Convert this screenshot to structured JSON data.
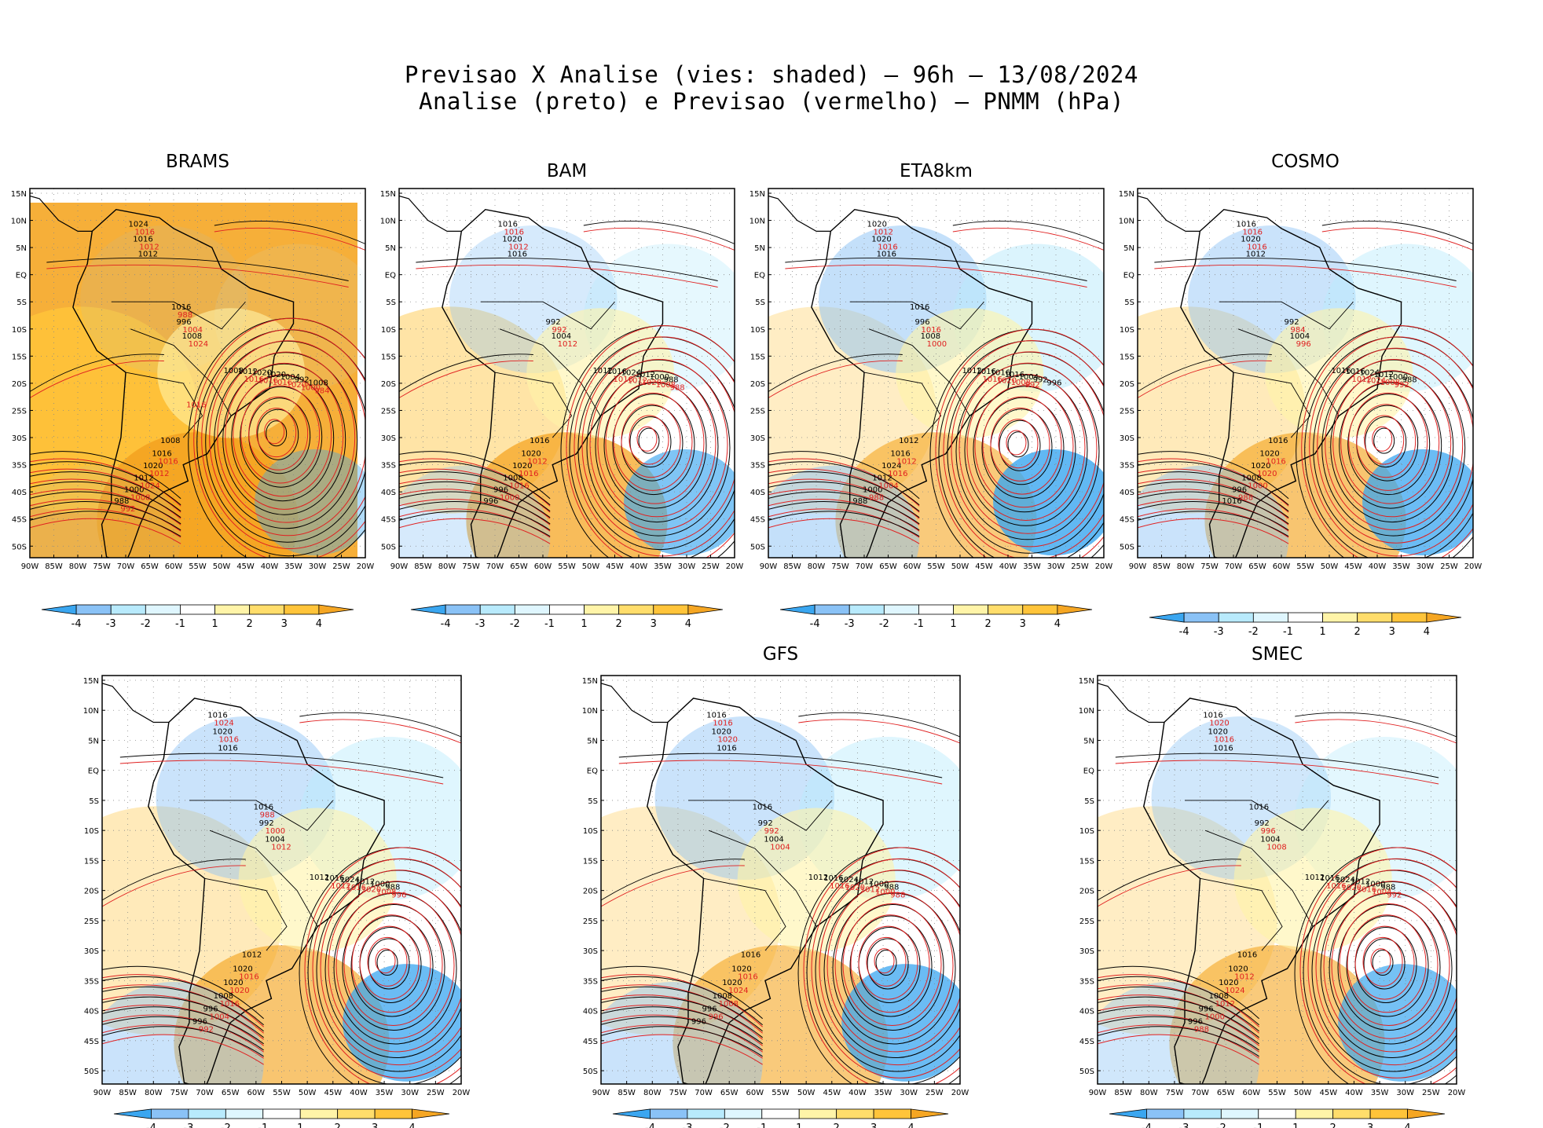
{
  "title": {
    "line1": "Previsao X Analise (vies: shaded) — 96h — 13/08/2024",
    "line2": "Analise (preto) e Previsao (vermelho) — PNMM (hPa)"
  },
  "lat_labels": [
    "15N",
    "10N",
    "5N",
    "EQ",
    "5S",
    "10S",
    "15S",
    "20S",
    "25S",
    "30S",
    "35S",
    "40S",
    "45S",
    "50S"
  ],
  "lon_labels": [
    "90W",
    "85W",
    "80W",
    "75W",
    "70W",
    "65W",
    "60W",
    "55W",
    "50W",
    "45W",
    "40W",
    "35W",
    "30W",
    "25W",
    "20W"
  ],
  "colorbar": {
    "labels": [
      "-4",
      "-3",
      "-2",
      "-1",
      "1",
      "2",
      "3",
      "4"
    ],
    "colors": [
      "#3aa6f0",
      "#8ac2f6",
      "#b8eafc",
      "#dff6fe",
      "#ffffff",
      "#fff4a8",
      "#ffdd6b",
      "#ffc43a",
      "#f5a623"
    ]
  },
  "colors": {
    "analysis_contour": "#000000",
    "forecast_contour": "#e02020",
    "warm_bias": "#f5a623",
    "cold_bias": "#3aa6f0"
  },
  "panels": [
    {
      "id": "brams",
      "title": "BRAMS",
      "labels": {
        "black": [
          "1008",
          "1008",
          "1012",
          "1012",
          "1016",
          "1016",
          "1020",
          "1020",
          "1024",
          "1020",
          "1012",
          "1008",
          "1004",
          "1000",
          "996",
          "992",
          "988",
          "1016",
          "1008"
        ],
        "red": [
          "1016",
          "1016",
          "1012",
          "1016",
          "1012",
          "1016",
          "1016",
          "1024",
          "1024",
          "1020",
          "1008",
          "1004",
          "1000",
          "992",
          "988",
          "984",
          "1016"
        ]
      }
    },
    {
      "id": "bam",
      "title": "BAM",
      "labels": {
        "black": [
          "1012",
          "1016",
          "1016",
          "1016",
          "1020",
          "1020",
          "1024",
          "1020",
          "1016",
          "1012",
          "1008",
          "1004",
          "1000",
          "996",
          "992",
          "988",
          "996"
        ],
        "red": [
          "1016",
          "1012",
          "1012",
          "1012",
          "1016",
          "1016",
          "1020",
          "1016",
          "1012",
          "1008",
          "1000",
          "992",
          "988"
        ]
      }
    },
    {
      "id": "eta8km",
      "title": "ETA8km",
      "labels": {
        "black": [
          "1012",
          "1012",
          "1016",
          "1016",
          "1016",
          "1020",
          "1016",
          "1024",
          "1020",
          "1016",
          "1012",
          "1008",
          "1004",
          "1000",
          "996",
          "992",
          "988",
          "1016",
          "996"
        ],
        "red": [
          "1016",
          "1012",
          "1016",
          "1020",
          "1016",
          "1012",
          "1008",
          "1004",
          "1000",
          "992",
          "988",
          "1016"
        ]
      }
    },
    {
      "id": "cosmo",
      "title": "COSMO",
      "labels": {
        "black": [
          "1016",
          "1016",
          "1012",
          "1016",
          "1020",
          "1020",
          "1024",
          "1020",
          "1016",
          "1012",
          "1008",
          "1004",
          "1000",
          "996",
          "992",
          "988",
          "1016"
        ],
        "red": [
          "1012",
          "1016",
          "1016",
          "1024",
          "1020",
          "1016",
          "1008",
          "1000",
          "996",
          "992",
          "988",
          "984"
        ]
      }
    },
    {
      "id": "panel5",
      "title": "",
      "labels": {
        "black": [
          "1012",
          "1012",
          "1016",
          "1016",
          "1020",
          "1020",
          "1024",
          "1020",
          "1016",
          "1012",
          "1008",
          "1004",
          "1000",
          "996",
          "992",
          "988",
          "996",
          "1016"
        ],
        "red": [
          "1012",
          "1016",
          "1016",
          "1016",
          "1020",
          "1024",
          "1020",
          "1016",
          "1012",
          "1008",
          "1004",
          "1000",
          "996",
          "992",
          "988"
        ]
      }
    },
    {
      "id": "gfs",
      "title": "GFS",
      "labels": {
        "black": [
          "1012",
          "1016",
          "1016",
          "1016",
          "1020",
          "1020",
          "1024",
          "1020",
          "1016",
          "1012",
          "1008",
          "1004",
          "1000",
          "996",
          "992",
          "988",
          "996",
          "1016"
        ],
        "red": [
          "1016",
          "1016",
          "1020",
          "1020",
          "1024",
          "1016",
          "1012",
          "1008",
          "1004",
          "1000",
          "996",
          "992",
          "988"
        ]
      }
    },
    {
      "id": "smec",
      "title": "SMEC",
      "labels": {
        "black": [
          "1012",
          "1016",
          "1016",
          "1016",
          "1020",
          "1020",
          "1024",
          "1020",
          "1016",
          "1012",
          "1008",
          "1004",
          "1000",
          "996",
          "992",
          "988",
          "996",
          "1016"
        ],
        "red": [
          "1016",
          "1012",
          "1016",
          "1020",
          "1024",
          "1020",
          "1016",
          "1012",
          "1008",
          "1004",
          "1000",
          "996",
          "992",
          "988"
        ]
      }
    }
  ]
}
